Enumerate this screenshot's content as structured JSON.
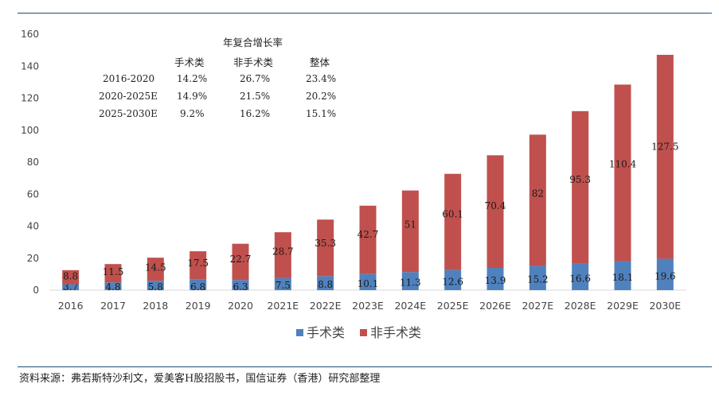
{
  "chart_data": {
    "type": "bar",
    "stacked": true,
    "categories": [
      "2016",
      "2017",
      "2018",
      "2019",
      "2020",
      "2021E",
      "2022E",
      "2023E",
      "2024E",
      "2025E",
      "2026E",
      "2027E",
      "2028E",
      "2029E",
      "2030E"
    ],
    "series": [
      {
        "name": "手术类",
        "color": "#4f81bd",
        "values": [
          3.7,
          4.8,
          5.8,
          6.8,
          6.3,
          7.5,
          8.8,
          10.1,
          11.3,
          12.6,
          13.9,
          15.2,
          16.6,
          18.1,
          19.6
        ]
      },
      {
        "name": "非手术类",
        "color": "#c0504d",
        "values": [
          8.8,
          11.5,
          14.5,
          17.5,
          22.7,
          28.7,
          35.3,
          42.7,
          51,
          60.1,
          70.4,
          82,
          95.3,
          110.4,
          127.5
        ]
      }
    ],
    "ylim": [
      0,
      160
    ],
    "yticks": [
      "0",
      "20",
      "40",
      "60",
      "80",
      "100",
      "120",
      "140",
      "160"
    ],
    "grid": false,
    "legend_position": "bottom"
  },
  "cagr_table": {
    "title": "年复合增长率",
    "columns": [
      "手术类",
      "非手术类",
      "整体"
    ],
    "rows": [
      {
        "label": "2016-2020",
        "values": [
          "14.2%",
          "26.7%",
          "23.4%"
        ]
      },
      {
        "label": "2020-2025E",
        "values": [
          "14.9%",
          "21.5%",
          "20.2%"
        ]
      },
      {
        "label": "2025-2030E",
        "values": [
          "9.2%",
          "16.2%",
          "15.1%"
        ]
      }
    ]
  },
  "source": "资料来源：弗若斯特沙利文，爱美客H股招股书，国信证券（香港）研究部整理"
}
